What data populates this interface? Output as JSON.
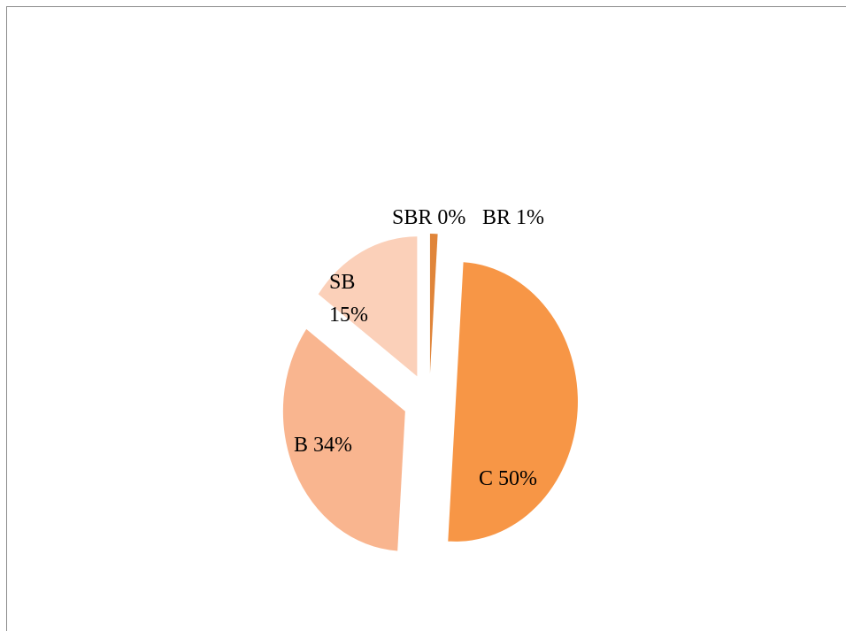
{
  "chart_data": {
    "type": "pie",
    "categories": [
      "BR",
      "C",
      "B",
      "SB",
      "SBR"
    ],
    "values": [
      1,
      50,
      34,
      15,
      0
    ],
    "value_labels": [
      "1%",
      "50%",
      "34%",
      "15%",
      "0%"
    ],
    "colors": [
      "#e0853a",
      "#f79646",
      "#f9b58f",
      "#fbd0b9",
      "#f2a46b"
    ],
    "exploded": true
  }
}
